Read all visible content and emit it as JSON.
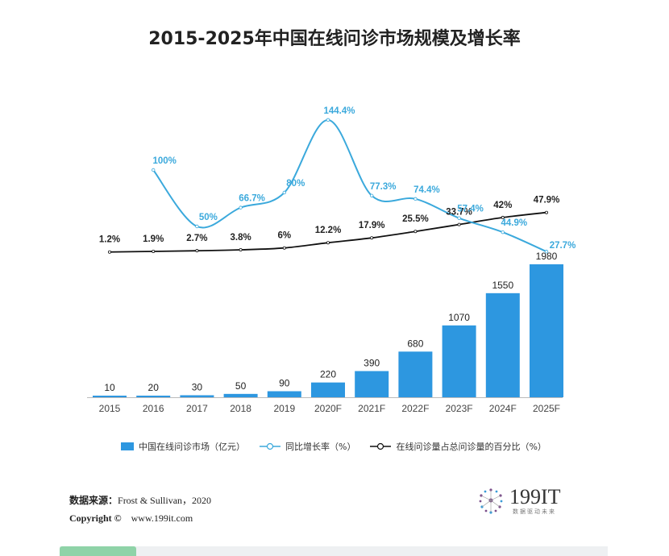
{
  "title": "2015-2025年中国在线问诊市场规模及增长率",
  "chart_data": {
    "type": "bar",
    "categories": [
      "2015",
      "2016",
      "2017",
      "2018",
      "2019",
      "2020F",
      "2021F",
      "2022F",
      "2023F",
      "2024F",
      "2025F"
    ],
    "series": [
      {
        "name": "中国在线问诊市场（亿元）",
        "type": "bar",
        "values": [
          10,
          20,
          30,
          50,
          90,
          220,
          390,
          680,
          1070,
          1550,
          1980
        ],
        "labels": [
          "10",
          "20",
          "30",
          "50",
          "90",
          "220",
          "390",
          "680",
          "1070",
          "1550",
          "1980"
        ],
        "color": "#2d97e0"
      },
      {
        "name": "同比增长率（%）",
        "type": "line",
        "values": [
          null,
          100,
          50,
          66.7,
          80,
          144.4,
          77.3,
          74.4,
          57.4,
          44.9,
          27.7
        ],
        "labels": [
          "",
          "100%",
          "50%",
          "66.7%",
          "80%",
          "144.4%",
          "77.3%",
          "74.4%",
          "57.4%",
          "44.9%",
          "27.7%"
        ],
        "color": "#3ba9dc"
      },
      {
        "name": "在线问诊量占总问诊量的百分比（%）",
        "type": "line",
        "values": [
          1.2,
          1.9,
          2.7,
          3.8,
          6,
          12.2,
          17.9,
          25.5,
          33.7,
          42,
          47.9
        ],
        "labels": [
          "1.2%",
          "1.9%",
          "2.7%",
          "3.8%",
          "6%",
          "12.2%",
          "17.9%",
          "25.5%",
          "33.7%",
          "42%",
          "47.9%"
        ],
        "color": "#111111"
      }
    ],
    "grid": false,
    "legend": "bottom"
  },
  "source": {
    "label": "数据来源：",
    "text": "Frost & Sullivan，2020",
    "copyright_label": "Copyright ©",
    "copyright_url": "www.199it.com"
  },
  "logo": {
    "text": "199IT",
    "sub": "数据驱动未来"
  }
}
